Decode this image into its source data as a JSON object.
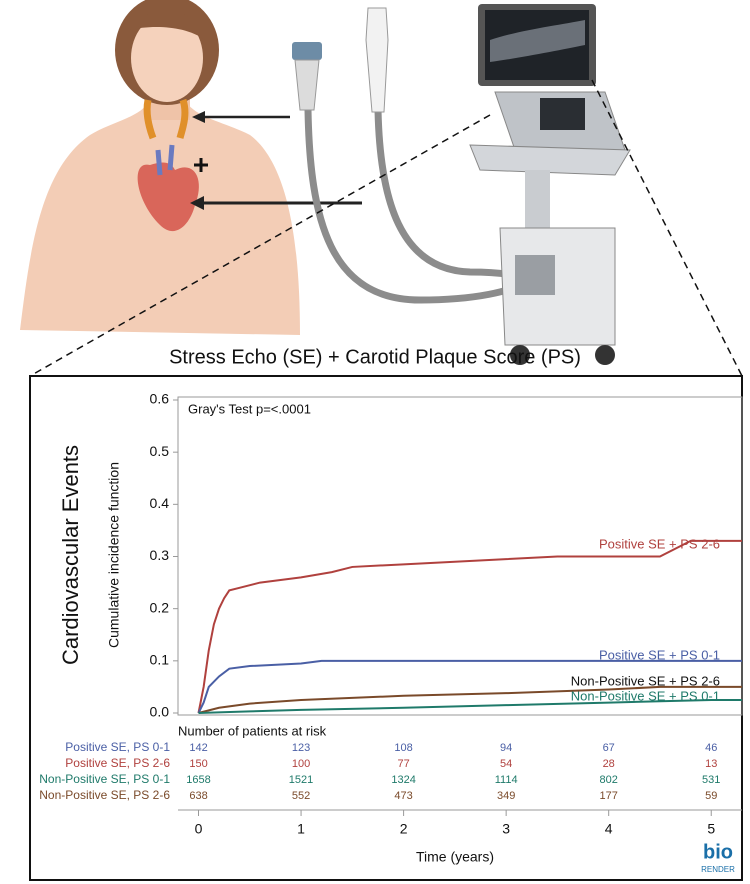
{
  "chart_data": {
    "type": "line",
    "title": "Stress Echo (SE) + Carotid Plaque Score (PS)",
    "side_label": "Cardiovascular Events",
    "ylabel": "Cumulative incidence function",
    "xlabel": "Time (years)",
    "annotation": "Gray's Test p=<.0001",
    "xlim": [
      -0.2,
      5.3
    ],
    "ylim": [
      0,
      0.6
    ],
    "xticks": [
      0,
      1,
      2,
      3,
      4,
      5
    ],
    "yticks": [
      {
        "value": 0,
        "label": "0.0"
      },
      0.1,
      0.2,
      0.3,
      0.4,
      0.5,
      0.6
    ],
    "series": [
      {
        "name": "Positive SE + PS 2-6",
        "color": "#b0413e",
        "x": [
          0,
          0.05,
          0.1,
          0.15,
          0.2,
          0.25,
          0.3,
          0.4,
          0.6,
          0.8,
          1.0,
          1.3,
          1.5,
          2.0,
          2.5,
          3.0,
          3.5,
          4.0,
          4.5,
          4.8,
          5.3
        ],
        "values": [
          0,
          0.05,
          0.12,
          0.17,
          0.2,
          0.22,
          0.235,
          0.24,
          0.25,
          0.255,
          0.26,
          0.27,
          0.28,
          0.285,
          0.29,
          0.295,
          0.3,
          0.3,
          0.3,
          0.33,
          0.33
        ]
      },
      {
        "name": "Positive SE + PS 0-1",
        "color": "#4a5fa5",
        "x": [
          0,
          0.05,
          0.1,
          0.2,
          0.3,
          0.5,
          1.0,
          1.2,
          5.3
        ],
        "values": [
          0,
          0.02,
          0.05,
          0.07,
          0.085,
          0.09,
          0.095,
          0.1,
          0.1
        ]
      },
      {
        "name": "Non-Positive SE + PS 2-6",
        "color": "#7a4a2a",
        "x": [
          0,
          0.2,
          0.5,
          1,
          2,
          3,
          4,
          4.5,
          5.3
        ],
        "values": [
          0,
          0.01,
          0.018,
          0.025,
          0.033,
          0.038,
          0.045,
          0.05,
          0.05
        ]
      },
      {
        "name": "Non-Positive SE + PS 0-1",
        "color": "#1f7a6a",
        "x": [
          0,
          0.5,
          1,
          2,
          3,
          4,
          5,
          5.3
        ],
        "values": [
          0,
          0.003,
          0.006,
          0.01,
          0.015,
          0.02,
          0.025,
          0.025
        ]
      }
    ],
    "risk_table": {
      "title": "Number of patients at risk",
      "rows": [
        {
          "name": "Positive SE, PS 0-1",
          "color": "#4a5fa5",
          "counts": [
            142,
            123,
            108,
            94,
            67,
            46
          ]
        },
        {
          "name": "Positive SE, PS 2-6",
          "color": "#b0413e",
          "counts": [
            150,
            100,
            77,
            54,
            28,
            13
          ]
        },
        {
          "name": "Non-Positive SE, PS 0-1",
          "color": "#1f7a6a",
          "counts": [
            1658,
            1521,
            1324,
            1114,
            802,
            531
          ]
        },
        {
          "name": "Non-Positive SE, PS 2-6",
          "color": "#7a4a2a",
          "counts": [
            638,
            552,
            473,
            349,
            177,
            59
          ]
        }
      ]
    },
    "logo": {
      "top": "bio",
      "bottom": "RENDER"
    }
  }
}
